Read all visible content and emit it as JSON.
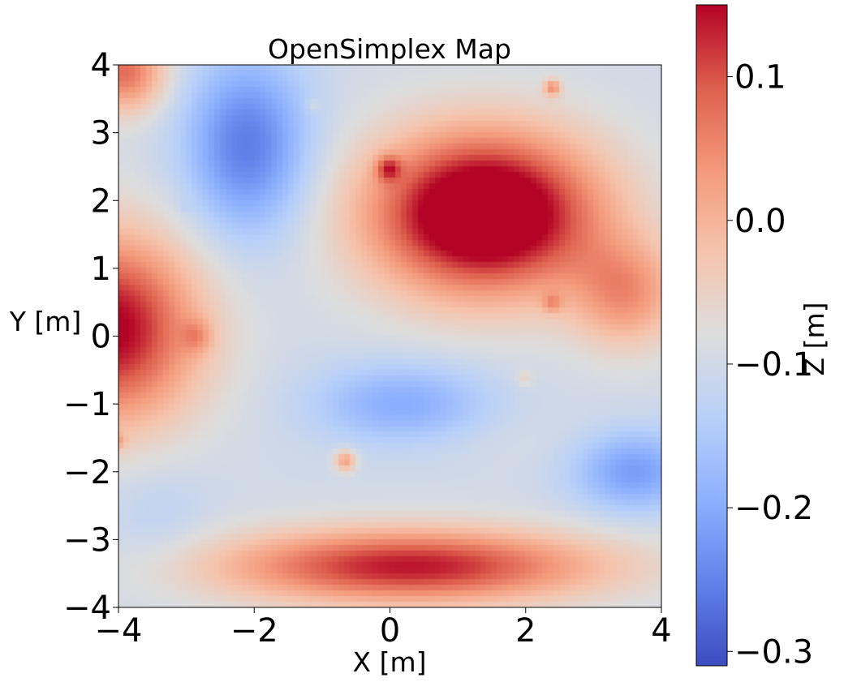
{
  "chart_data": {
    "type": "heatmap",
    "title": "OpenSimplex Map",
    "xlabel": "X [m]",
    "ylabel": "Y [m]",
    "colorbar_label": "Z [m]",
    "colormap": "coolwarm",
    "xlim": [
      -4,
      4
    ],
    "ylim": [
      -4,
      4
    ],
    "xticks": [
      -4,
      -2,
      0,
      2,
      4
    ],
    "yticks": [
      -4,
      -3,
      -2,
      -1,
      0,
      1,
      2,
      3,
      4
    ],
    "xtick_labels": [
      "−4",
      "−2",
      "0",
      "2",
      "4"
    ],
    "ytick_labels": [
      "−4",
      "−3",
      "−2",
      "−1",
      "0",
      "1",
      "2",
      "3",
      "4"
    ],
    "colorbar_range": [
      -0.31,
      0.15
    ],
    "colorbar_ticks": [
      -0.3,
      -0.2,
      -0.1,
      0.0,
      0.1
    ],
    "colorbar_tick_labels": [
      "−0.3",
      "−0.2",
      "−0.1",
      "0.0",
      "0.1"
    ],
    "background_value": -0.1,
    "features": [
      {
        "x": 1.4,
        "y": 1.8,
        "sx": 1.7,
        "sy": 1.2,
        "value": 0.24
      },
      {
        "x": -2.1,
        "y": 2.8,
        "sx": 0.9,
        "sy": 1.3,
        "value": -0.26
      },
      {
        "x": 0.2,
        "y": -1.0,
        "sx": 1.3,
        "sy": 0.6,
        "value": -0.2
      },
      {
        "x": 3.6,
        "y": -2.0,
        "sx": 0.9,
        "sy": 0.6,
        "value": -0.22
      },
      {
        "x": 2.0,
        "y": -1.5,
        "sx": 1.5,
        "sy": 0.5,
        "value": -0.09
      },
      {
        "x": -4.1,
        "y": 0.1,
        "sx": 1.3,
        "sy": 1.4,
        "value": 0.16
      },
      {
        "x": 0.3,
        "y": -3.4,
        "sx": 2.8,
        "sy": 0.55,
        "value": 0.14
      },
      {
        "x": -3.4,
        "y": -2.7,
        "sx": 0.8,
        "sy": 0.8,
        "value": -0.13
      },
      {
        "x": -3.9,
        "y": 3.9,
        "sx": 0.6,
        "sy": 0.6,
        "value": 0.08
      },
      {
        "x": 3.5,
        "y": 0.6,
        "sx": 0.8,
        "sy": 0.8,
        "value": 0.03
      }
    ],
    "spots": [
      {
        "x": 0.0,
        "y": 2.45,
        "r": 0.18,
        "value": 0.15
      },
      {
        "x": -2.9,
        "y": 0.0,
        "r": 0.24,
        "value": 0.07
      },
      {
        "x": -0.65,
        "y": -1.85,
        "r": 0.16,
        "value": 0.02
      },
      {
        "x": 2.4,
        "y": 3.65,
        "r": 0.12,
        "value": 0.05
      },
      {
        "x": 2.4,
        "y": 0.5,
        "r": 0.14,
        "value": 0.06
      },
      {
        "x": 2.0,
        "y": -0.62,
        "r": 0.12,
        "value": -0.06
      },
      {
        "x": -1.1,
        "y": 3.4,
        "r": 0.1,
        "value": -0.1
      },
      {
        "x": -3.0,
        "y": 1.9,
        "r": 0.08,
        "value": -0.13
      },
      {
        "x": -4.0,
        "y": -1.55,
        "r": 0.12,
        "value": 0.03
      }
    ]
  }
}
